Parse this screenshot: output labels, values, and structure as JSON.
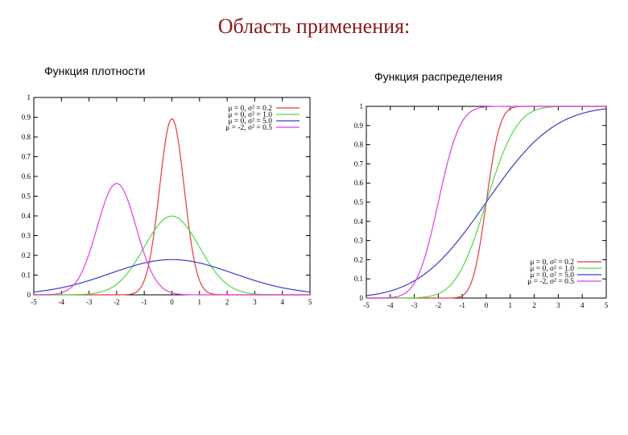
{
  "page": {
    "title": "Область применения:",
    "subtitle_left": "Функция плотности",
    "subtitle_right": "Функция распределения"
  },
  "chart_data": [
    {
      "type": "line",
      "function": "pdf",
      "xlim": [
        -5,
        5
      ],
      "ylim": [
        0,
        1
      ],
      "x_ticks": [
        "-5",
        "-4",
        "-3",
        "-2",
        "-1",
        "0",
        "1",
        "2",
        "3",
        "4",
        "5"
      ],
      "y_ticks": [
        "0",
        "0.1",
        "0.2",
        "0.3",
        "0.4",
        "0.5",
        "0.6",
        "0.7",
        "0.8",
        "0.9",
        "1"
      ],
      "legend_position": "top-right",
      "series": [
        {
          "name": "μ = 0, σ² = 0.2",
          "mu": 0,
          "var": 0.2,
          "color": "#e8383d",
          "points": [
            [
              -2,
              0.0
            ],
            [
              -1,
              0.073
            ],
            [
              -0.5,
              0.48
            ],
            [
              0,
              0.892
            ],
            [
              0.5,
              0.48
            ],
            [
              1,
              0.073
            ],
            [
              2,
              0.0
            ]
          ]
        },
        {
          "name": "μ = 0, σ² = 1.0",
          "mu": 0,
          "var": 1.0,
          "color": "#4cd94c",
          "points": [
            [
              -3,
              0.004
            ],
            [
              -2,
              0.054
            ],
            [
              -1,
              0.242
            ],
            [
              0,
              0.399
            ],
            [
              1,
              0.242
            ],
            [
              2,
              0.054
            ],
            [
              3,
              0.004
            ]
          ]
        },
        {
          "name": "μ = 0, σ² = 5.0",
          "mu": 0,
          "var": 5.0,
          "color": "#3a3ad0",
          "points": [
            [
              -5,
              0.015
            ],
            [
              -4,
              0.036
            ],
            [
              -3,
              0.074
            ],
            [
              -2,
              0.119
            ],
            [
              -1,
              0.161
            ],
            [
              0,
              0.178
            ],
            [
              1,
              0.161
            ],
            [
              2,
              0.119
            ],
            [
              3,
              0.074
            ],
            [
              4,
              0.036
            ],
            [
              5,
              0.015
            ]
          ]
        },
        {
          "name": "μ = -2, σ² = 0.5",
          "mu": -2,
          "var": 0.5,
          "color": "#e03ee0",
          "points": [
            [
              -4,
              0.01
            ],
            [
              -3,
              0.208
            ],
            [
              -2.5,
              0.439
            ],
            [
              -2,
              0.564
            ],
            [
              -1.5,
              0.439
            ],
            [
              -1,
              0.208
            ],
            [
              0,
              0.01
            ]
          ]
        }
      ]
    },
    {
      "type": "line",
      "function": "cdf",
      "xlim": [
        -5,
        5
      ],
      "ylim": [
        0,
        1
      ],
      "x_ticks": [
        "-5",
        "-4",
        "-3",
        "-2",
        "-1",
        "0",
        "1",
        "2",
        "3",
        "4",
        "5"
      ],
      "y_ticks": [
        "0",
        "0.1",
        "0.2",
        "0.3",
        "0.4",
        "0.5",
        "0.6",
        "0.7",
        "0.8",
        "0.9",
        "1"
      ],
      "legend_position": "bottom-right",
      "series": [
        {
          "name": "μ = 0, σ² = 0.2",
          "mu": 0,
          "var": 0.2,
          "color": "#e8383d",
          "points": [
            [
              -2,
              0.0
            ],
            [
              -1,
              0.013
            ],
            [
              -0.5,
              0.132
            ],
            [
              0,
              0.5
            ],
            [
              0.5,
              0.868
            ],
            [
              1,
              0.987
            ],
            [
              2,
              1.0
            ]
          ]
        },
        {
          "name": "μ = 0, σ² = 1.0",
          "mu": 0,
          "var": 1.0,
          "color": "#4cd94c",
          "points": [
            [
              -3,
              0.001
            ],
            [
              -2,
              0.023
            ],
            [
              -1,
              0.159
            ],
            [
              0,
              0.5
            ],
            [
              1,
              0.841
            ],
            [
              2,
              0.977
            ],
            [
              3,
              0.999
            ]
          ]
        },
        {
          "name": "μ = 0, σ² = 5.0",
          "mu": 0,
          "var": 5.0,
          "color": "#3a3ad0",
          "points": [
            [
              -5,
              0.013
            ],
            [
              -4,
              0.037
            ],
            [
              -3,
              0.09
            ],
            [
              -2,
              0.186
            ],
            [
              -1,
              0.327
            ],
            [
              0,
              0.5
            ],
            [
              1,
              0.673
            ],
            [
              2,
              0.814
            ],
            [
              3,
              0.91
            ],
            [
              4,
              0.963
            ],
            [
              5,
              0.987
            ]
          ]
        },
        {
          "name": "μ = -2, σ² = 0.5",
          "mu": -2,
          "var": 0.5,
          "color": "#e03ee0",
          "points": [
            [
              -4,
              0.002
            ],
            [
              -3,
              0.079
            ],
            [
              -2.5,
              0.24
            ],
            [
              -2,
              0.5
            ],
            [
              -1.5,
              0.76
            ],
            [
              -1,
              0.921
            ],
            [
              0,
              0.998
            ]
          ]
        }
      ]
    }
  ]
}
